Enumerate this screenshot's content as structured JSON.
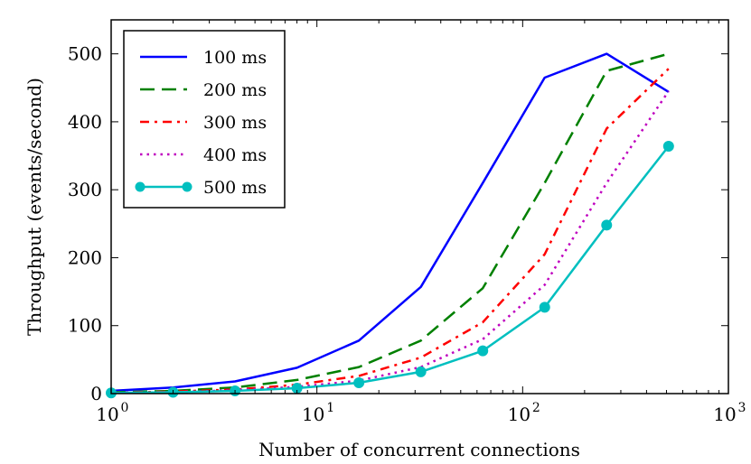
{
  "chart_data": {
    "type": "line",
    "title": "",
    "xlabel": "Number of concurrent connections",
    "ylabel": "Throughput (events/second)",
    "xscale": "log",
    "xlim": [
      1,
      1000
    ],
    "ylim": [
      0,
      550
    ],
    "yticks": [
      0,
      100,
      200,
      300,
      400,
      500
    ],
    "xticks": [
      {
        "value": 1,
        "label": "10",
        "exp": "0"
      },
      {
        "value": 10,
        "label": "10",
        "exp": "1"
      },
      {
        "value": 100,
        "label": "10",
        "exp": "2"
      },
      {
        "value": 1000,
        "label": "10",
        "exp": "3"
      }
    ],
    "x": [
      1,
      2,
      4,
      8,
      16,
      32,
      64,
      128,
      256,
      512
    ],
    "legend_position": "top-left",
    "series": [
      {
        "name": "100 ms",
        "color": "#0000ff",
        "style": "solid",
        "marker": false,
        "values": [
          4,
          9,
          18,
          38,
          78,
          157,
          310,
          465,
          500,
          444
        ]
      },
      {
        "name": "200 ms",
        "color": "#008000",
        "style": "dashed",
        "marker": false,
        "values": [
          2,
          4,
          9,
          20,
          39,
          78,
          155,
          310,
          475,
          500
        ]
      },
      {
        "name": "300 ms",
        "color": "#ff0000",
        "style": "dashdot",
        "marker": false,
        "values": [
          1,
          3,
          6,
          13,
          26,
          53,
          105,
          205,
          390,
          478
        ]
      },
      {
        "name": "400 ms",
        "color": "#bf00bf",
        "style": "dotted",
        "marker": false,
        "values": [
          1,
          2,
          5,
          10,
          19,
          39,
          80,
          160,
          310,
          445
        ]
      },
      {
        "name": "500 ms",
        "color": "#00bfbf",
        "style": "solid",
        "marker": true,
        "values": [
          1,
          2,
          4,
          8,
          16,
          32,
          63,
          127,
          248,
          364
        ]
      }
    ]
  }
}
